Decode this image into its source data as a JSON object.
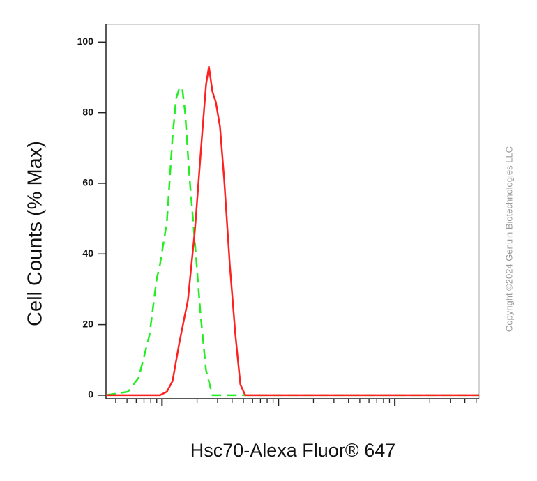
{
  "chart_data": {
    "type": "line",
    "x_label": "Hsc70-Alexa Fluor® 647",
    "y_label": "Cell Counts (% Max)",
    "copyright": "Copyright ©2024 Genuin Biotechnologies LLC",
    "x_log": true,
    "xlim": [
      33,
      53000
    ],
    "xticks": [
      40,
      50,
      60,
      70,
      80,
      90,
      100,
      200,
      300,
      400,
      500,
      600,
      700,
      800,
      900,
      1000,
      2000,
      3000,
      4000,
      5000,
      6000,
      7000,
      8000,
      9000,
      10000,
      20000,
      30000,
      40000,
      50000
    ],
    "ylim": [
      -1,
      105
    ],
    "yticks": [
      0,
      20,
      40,
      60,
      80,
      100
    ],
    "series": [
      {
        "color": "#22ee22",
        "dashed": true,
        "x": [
          33,
          51,
          63,
          78,
          90,
          96,
          110,
          123,
          132,
          141,
          149,
          158,
          171,
          192,
          214,
          239,
          271,
          333,
          1000,
          10000,
          53000
        ],
        "values": [
          0,
          1,
          5,
          17,
          33,
          37,
          49,
          73,
          84,
          87,
          87,
          80,
          63,
          43,
          23,
          7,
          0,
          0,
          0,
          0,
          0
        ]
      },
      {
        "color": "#ff2020",
        "dashed": false,
        "x": [
          33,
          96,
          110,
          123,
          141,
          167,
          192,
          220,
          239,
          253,
          271,
          290,
          315,
          342,
          382,
          427,
          471,
          519,
          579,
          10000,
          53000
        ],
        "values": [
          0,
          0,
          1,
          4,
          15,
          27,
          47,
          73,
          88,
          93,
          86,
          83,
          76,
          61,
          37,
          17,
          3,
          0,
          0,
          0,
          0
        ]
      }
    ]
  }
}
